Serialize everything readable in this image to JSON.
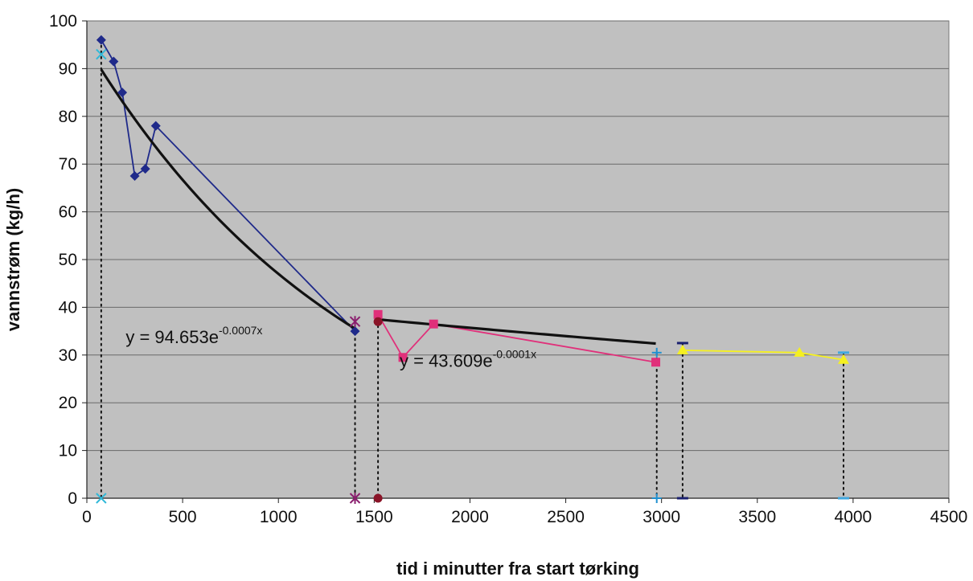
{
  "chart_data": {
    "type": "scatter",
    "xlabel": "tid i minutter fra start tørking",
    "ylabel": "vannstrøm (kg/h)",
    "xlim": [
      0,
      4500
    ],
    "ylim": [
      0,
      100
    ],
    "xticks": [
      0,
      500,
      1000,
      1500,
      2000,
      2500,
      3000,
      3500,
      4000,
      4500
    ],
    "yticks": [
      0,
      10,
      20,
      30,
      40,
      50,
      60,
      70,
      80,
      90,
      100
    ],
    "grid": "horizontal",
    "background_color": "#c0c0c0",
    "series": [
      {
        "color": "#1f2a8a",
        "marker": "diamond",
        "line": true,
        "x": [
          75,
          140,
          185,
          250,
          305,
          360,
          1400
        ],
        "y": [
          96,
          91.5,
          85,
          67.5,
          69,
          78,
          35
        ]
      },
      {
        "color": "#e0307a",
        "marker": "square",
        "line": true,
        "x": [
          1520,
          1650,
          1810,
          2970
        ],
        "y": [
          38.5,
          29.5,
          36.5,
          28.5
        ]
      },
      {
        "color": "#f5f020",
        "marker": "triangle",
        "line": true,
        "x": [
          3110,
          3720,
          3950
        ],
        "y": [
          31,
          30.5,
          29
        ]
      },
      {
        "color": "#30b8d8",
        "marker": "x",
        "line": false,
        "x": [
          75,
          75
        ],
        "y": [
          93,
          0
        ]
      },
      {
        "color": "#8a1e6e",
        "marker": "star",
        "line": false,
        "x": [
          1400,
          1400
        ],
        "y": [
          37,
          0
        ]
      },
      {
        "color": "#8a1428",
        "marker": "circle",
        "line": false,
        "x": [
          1520,
          1520
        ],
        "y": [
          37,
          0
        ]
      },
      {
        "color": "#2090d0",
        "marker": "plus",
        "line": false,
        "x": [
          2975,
          2975
        ],
        "y": [
          30.5,
          0
        ]
      },
      {
        "color": "#1a2070",
        "marker": "dash",
        "line": false,
        "x": [
          3110,
          3110
        ],
        "y": [
          32.5,
          0
        ]
      },
      {
        "color": "#40a8e0",
        "marker": "dash",
        "line": false,
        "x": [
          3950,
          3950
        ],
        "y": [
          30.5,
          0
        ]
      }
    ],
    "trendlines": [
      {
        "a": 94.653,
        "b": -0.0007,
        "x_from": 75,
        "x_to": 1400,
        "color": "#111111"
      },
      {
        "a": 43.609,
        "b": -0.0001,
        "x_from": 1520,
        "x_to": 2970,
        "color": "#111111"
      }
    ],
    "drop_lines_x": [
      75,
      1400,
      1520,
      2975,
      3110,
      3950
    ],
    "annotations": [
      {
        "id": "eq1",
        "base": "y = 94.653e",
        "sup": "-0.0007x",
        "at_x": 560,
        "at_y": 32.5
      },
      {
        "id": "eq2",
        "base": "y = 43.609e",
        "sup": "-0.0001x",
        "at_x": 1990,
        "at_y": 27.5
      }
    ]
  }
}
